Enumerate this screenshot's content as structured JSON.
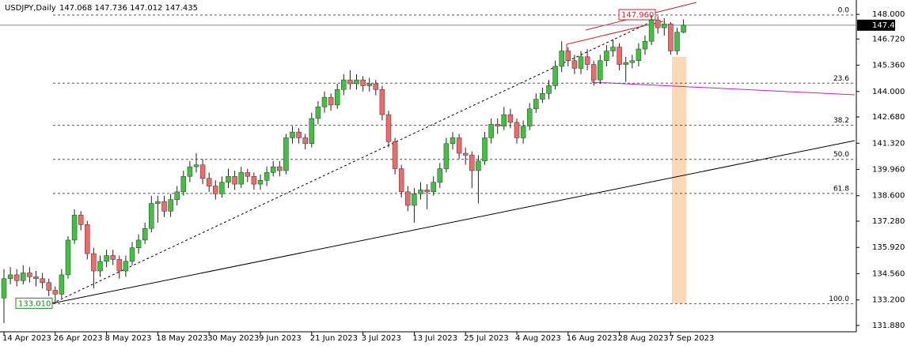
{
  "chart_data": {
    "type": "candlestick",
    "title": "USDJPY,Daily",
    "subtitle": "147.068 147.736 147.012 147.435",
    "categories": [
      "14 Apr 2023",
      null,
      null,
      null,
      null,
      null,
      null,
      null,
      "26 Apr 2023",
      null,
      null,
      null,
      null,
      null,
      null,
      null,
      "8 May 2023",
      null,
      null,
      null,
      null,
      null,
      null,
      null,
      "18 May 2023",
      null,
      null,
      null,
      null,
      null,
      null,
      null,
      "30 May 2023",
      null,
      null,
      null,
      null,
      null,
      null,
      null,
      "9 Jun 2023",
      null,
      null,
      null,
      null,
      null,
      null,
      null,
      "21 Jun 2023",
      null,
      null,
      null,
      null,
      null,
      null,
      null,
      "3 Jul 2023",
      null,
      null,
      null,
      null,
      null,
      null,
      null,
      "13 Jul 2023",
      null,
      null,
      null,
      null,
      null,
      null,
      null,
      "25 Jul 2023",
      null,
      null,
      null,
      null,
      null,
      null,
      null,
      "4 Aug 2023",
      null,
      null,
      null,
      null,
      null,
      null,
      null,
      "16 Aug 2023",
      null,
      null,
      null,
      null,
      null,
      null,
      null,
      "28 Aug 2023",
      null,
      null,
      null,
      null,
      null,
      null,
      null,
      "7 Sep 2023",
      null,
      null
    ],
    "open": [
      133.3,
      134.3,
      134.5,
      134.2,
      134.6,
      134.4,
      134.3,
      134.1,
      133.7,
      133.5,
      134.5,
      136.3,
      137.6,
      137.1,
      135.6,
      134.7,
      135.2,
      135.5,
      135.3,
      134.7,
      135.2,
      135.9,
      136.3,
      136.9,
      138.2,
      138.3,
      137.8,
      138.4,
      138.8,
      139.6,
      140.1,
      140.2,
      139.5,
      139.1,
      138.7,
      139.3,
      139.6,
      139.2,
      139.8,
      139.6,
      139.2,
      139.4,
      139.8,
      140.1,
      139.9,
      141.6,
      141.9,
      141.6,
      141.3,
      142.6,
      143.2,
      143.7,
      143.3,
      144.1,
      144.6,
      144.4,
      144.6,
      144.3,
      144.4,
      144.1,
      142.8,
      141.4,
      140.0,
      138.8,
      138.1,
      138.7,
      138.9,
      138.8,
      139.3,
      140.0,
      141.3,
      141.6,
      140.8,
      140.7,
      139.9,
      140.4,
      141.6,
      142.3,
      142.2,
      142.8,
      142.4,
      141.6,
      142.2,
      143.1,
      143.6,
      143.9,
      144.3,
      145.3,
      146.1,
      145.6,
      145.2,
      145.8,
      145.4,
      144.6,
      145.6,
      146.1,
      146.3,
      145.4,
      145.5,
      145.6,
      146.2,
      146.6,
      147.7,
      147.3,
      147.5,
      146.1,
      147.068
    ],
    "high": [
      134.8,
      134.9,
      134.8,
      135.0,
      134.9,
      134.7,
      134.6,
      134.3,
      133.9,
      134.8,
      136.5,
      137.9,
      137.8,
      137.3,
      135.9,
      135.5,
      135.8,
      135.8,
      135.5,
      135.5,
      136.2,
      136.6,
      137.2,
      138.6,
      138.6,
      138.6,
      138.7,
      139.1,
      139.9,
      140.4,
      140.8,
      140.5,
      139.8,
      139.4,
      139.6,
      140.0,
      139.9,
      140.1,
      140.0,
      139.8,
      139.7,
      140.1,
      140.4,
      140.4,
      141.8,
      142.2,
      142.1,
      141.8,
      142.9,
      143.5,
      144.0,
      143.9,
      144.4,
      144.9,
      145.1,
      144.9,
      144.8,
      144.7,
      144.6,
      144.3,
      143.0,
      141.6,
      140.2,
      139.1,
      139.0,
      139.3,
      139.2,
      139.6,
      140.3,
      141.6,
      141.9,
      141.8,
      141.1,
      140.9,
      140.7,
      141.9,
      142.6,
      142.6,
      143.2,
      143.1,
      142.6,
      142.5,
      143.4,
      143.9,
      144.2,
      144.6,
      145.6,
      146.6,
      146.3,
      145.9,
      146.1,
      146.2,
      145.6,
      145.9,
      146.4,
      146.7,
      146.5,
      145.8,
      145.9,
      146.5,
      146.9,
      147.96,
      147.9,
      147.8,
      147.6,
      147.3,
      147.736
    ],
    "low": [
      132.0,
      134.0,
      133.9,
      134.0,
      134.1,
      133.9,
      133.8,
      133.4,
      133.01,
      133.3,
      134.3,
      136.1,
      136.8,
      135.3,
      133.8,
      134.4,
      134.9,
      135.0,
      134.3,
      134.4,
      135.0,
      135.6,
      136.1,
      136.7,
      137.2,
      137.5,
      137.5,
      138.1,
      138.6,
      139.3,
      139.8,
      139.2,
      138.8,
      138.4,
      138.5,
      139.0,
      138.9,
      139.0,
      139.3,
      138.9,
      138.9,
      139.1,
      139.6,
      139.6,
      139.7,
      141.3,
      141.3,
      141.0,
      141.1,
      142.3,
      142.9,
      143.0,
      143.1,
      143.8,
      144.1,
      144.1,
      144.0,
      144.0,
      143.8,
      142.5,
      141.1,
      139.7,
      138.5,
      137.8,
      137.2,
      138.4,
      137.9,
      138.6,
      139.0,
      139.8,
      141.0,
      140.5,
      140.2,
      139.0,
      138.2,
      140.2,
      141.3,
      141.8,
      142.0,
      142.1,
      141.3,
      141.3,
      142.0,
      142.9,
      143.4,
      143.6,
      144.1,
      145.0,
      145.3,
      144.9,
      144.9,
      145.1,
      144.3,
      144.4,
      145.3,
      145.8,
      145.1,
      144.5,
      145.2,
      145.3,
      145.9,
      146.4,
      147.0,
      146.9,
      145.9,
      145.9,
      147.012
    ],
    "close": [
      134.3,
      134.5,
      134.2,
      134.6,
      134.4,
      134.3,
      134.1,
      133.7,
      133.5,
      134.5,
      136.3,
      137.6,
      137.1,
      135.6,
      134.7,
      135.2,
      135.5,
      135.3,
      134.7,
      135.2,
      135.9,
      136.3,
      136.9,
      138.2,
      138.3,
      137.8,
      138.4,
      138.8,
      139.6,
      140.1,
      140.2,
      139.5,
      139.1,
      138.7,
      139.3,
      139.6,
      139.2,
      139.8,
      139.6,
      139.2,
      139.4,
      139.8,
      140.1,
      139.9,
      141.6,
      141.9,
      141.6,
      141.3,
      142.6,
      143.2,
      143.7,
      143.3,
      144.1,
      144.6,
      144.4,
      144.6,
      144.3,
      144.4,
      144.1,
      142.8,
      141.4,
      140.0,
      138.8,
      138.1,
      138.7,
      138.9,
      138.8,
      139.3,
      140.0,
      141.3,
      141.6,
      140.8,
      140.7,
      139.9,
      140.4,
      141.6,
      142.3,
      142.2,
      142.8,
      142.4,
      141.6,
      142.2,
      143.1,
      143.6,
      143.9,
      144.3,
      145.3,
      146.1,
      145.6,
      145.2,
      145.8,
      145.4,
      144.6,
      145.6,
      146.1,
      146.3,
      145.4,
      145.5,
      145.6,
      146.2,
      146.6,
      147.7,
      147.3,
      147.5,
      146.1,
      147.07,
      147.435
    ],
    "up_color": "#3cc43c",
    "down_color": "#f06a6a",
    "ylim": [
      131.55,
      148.74
    ],
    "yticks": [
      {
        "value": 148.0,
        "label": "148.000"
      },
      {
        "value": 146.72,
        "label": "146.720"
      },
      {
        "value": 145.36,
        "label": "145.360"
      },
      {
        "value": 144.0,
        "label": "144.000"
      },
      {
        "value": 142.68,
        "label": "142.680"
      },
      {
        "value": 141.32,
        "label": "141.320"
      },
      {
        "value": 139.96,
        "label": "139.960"
      },
      {
        "value": 138.6,
        "label": "138.600"
      },
      {
        "value": 137.28,
        "label": "137.280"
      },
      {
        "value": 135.92,
        "label": "135.920"
      },
      {
        "value": 134.56,
        "label": "134.560"
      },
      {
        "value": 133.2,
        "label": "133.200"
      },
      {
        "value": 131.88,
        "label": "131.880"
      }
    ],
    "last_price": {
      "value": 147.435,
      "label": "147.435"
    },
    "fib_levels": [
      {
        "value": 147.96,
        "label": "0.0"
      },
      {
        "value": 144.43,
        "label": "23.6"
      },
      {
        "value": 142.25,
        "label": "38.2"
      },
      {
        "value": 140.485,
        "label": "50.0"
      },
      {
        "value": 138.72,
        "label": "61.8"
      },
      {
        "value": 133.01,
        "label": "100.0"
      }
    ],
    "price_marks": [
      {
        "value": 147.96,
        "label": "147.960",
        "color": "#d0203a"
      },
      {
        "value": 133.01,
        "label": "133.010",
        "color": "#1a8a1a"
      }
    ]
  }
}
